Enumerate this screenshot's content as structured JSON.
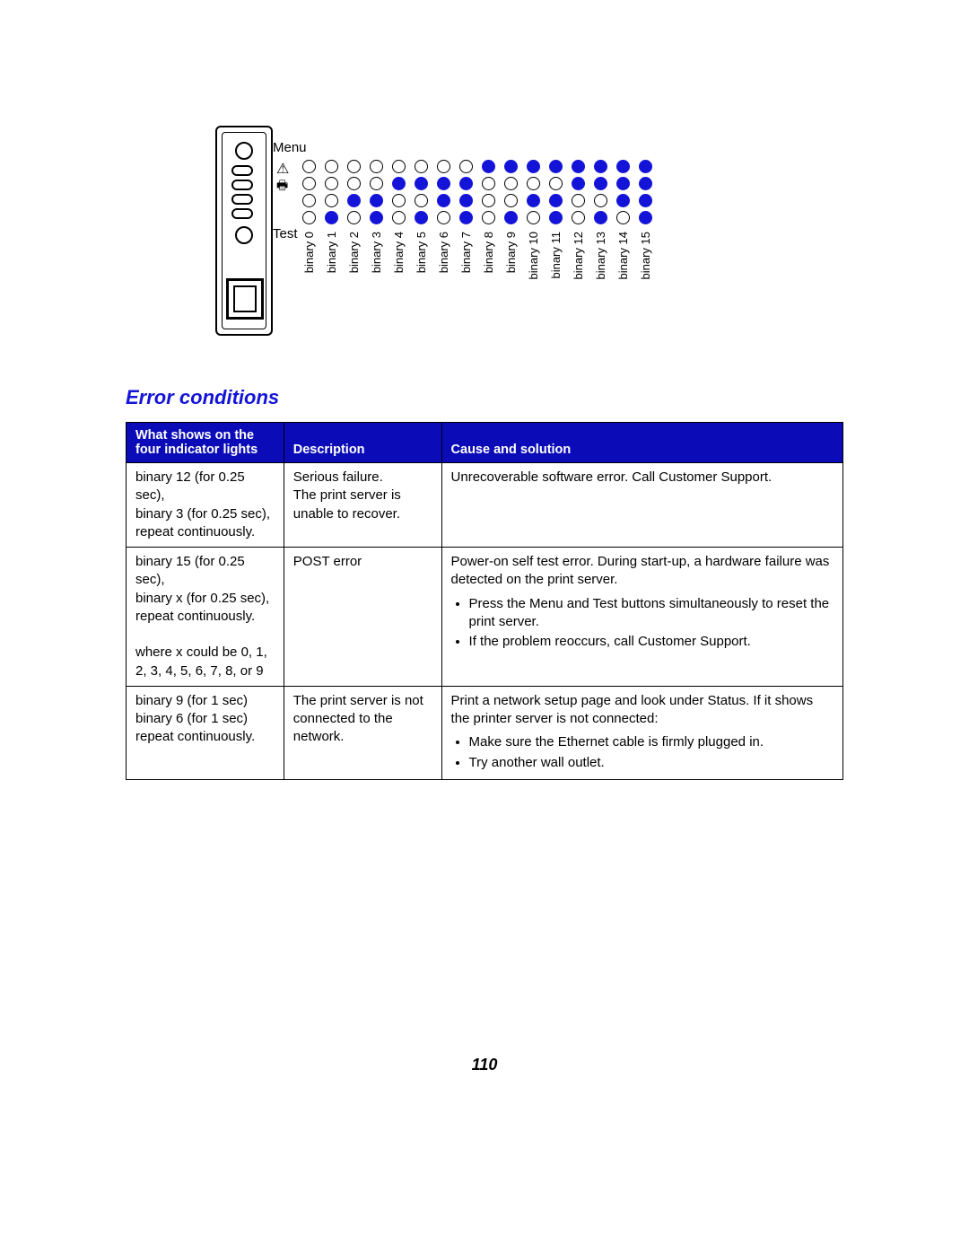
{
  "colors": {
    "led_on": "#1414d8",
    "led_off_border": "#000000",
    "table_header_bg": "#0b0bb8",
    "table_header_text": "#ffffff",
    "section_title": "#1414d8",
    "page_bg": "#ffffff"
  },
  "device": {
    "menu_label": "Menu",
    "test_label": "Test"
  },
  "binary_columns": {
    "label_prefix": "binary",
    "columns": [
      {
        "label": "binary 0",
        "bits": [
          0,
          0,
          0,
          0
        ]
      },
      {
        "label": "binary 1",
        "bits": [
          0,
          0,
          0,
          1
        ]
      },
      {
        "label": "binary 2",
        "bits": [
          0,
          0,
          1,
          0
        ]
      },
      {
        "label": "binary 3",
        "bits": [
          0,
          0,
          1,
          1
        ]
      },
      {
        "label": "binary 4",
        "bits": [
          0,
          1,
          0,
          0
        ]
      },
      {
        "label": "binary 5",
        "bits": [
          0,
          1,
          0,
          1
        ]
      },
      {
        "label": "binary 6",
        "bits": [
          0,
          1,
          1,
          0
        ]
      },
      {
        "label": "binary 7",
        "bits": [
          0,
          1,
          1,
          1
        ]
      },
      {
        "label": "binary 8",
        "bits": [
          1,
          0,
          0,
          0
        ]
      },
      {
        "label": "binary 9",
        "bits": [
          1,
          0,
          0,
          1
        ]
      },
      {
        "label": "binary 10",
        "bits": [
          1,
          0,
          1,
          0
        ]
      },
      {
        "label": "binary 11",
        "bits": [
          1,
          0,
          1,
          1
        ]
      },
      {
        "label": "binary 12",
        "bits": [
          1,
          1,
          0,
          0
        ]
      },
      {
        "label": "binary 13",
        "bits": [
          1,
          1,
          0,
          1
        ]
      },
      {
        "label": "binary 14",
        "bits": [
          1,
          1,
          1,
          0
        ]
      },
      {
        "label": "binary 15",
        "bits": [
          1,
          1,
          1,
          1
        ]
      }
    ]
  },
  "section_title": "Error conditions",
  "table": {
    "col_widths": [
      "22%",
      "22%",
      "56%"
    ],
    "headers": [
      "What shows on the four indicator lights",
      "Description",
      "Cause and solution"
    ],
    "rows": [
      {
        "lights": "binary 12 (for 0.25 sec),\nbinary 3 (for 0.25 sec),\nrepeat continuously.",
        "description": "Serious failure.\nThe print server is unable to recover.",
        "solution_intro": "Unrecoverable software error. Call Customer Support.",
        "solution_bullets": []
      },
      {
        "lights": "binary 15 (for 0.25 sec),\nbinary x (for 0.25 sec),\nrepeat continuously.\n\nwhere x could be 0, 1, 2, 3, 4, 5, 6, 7, 8, or 9",
        "description": "POST error",
        "solution_intro": "Power-on self test error. During start-up, a hardware failure was detected on the print server.",
        "solution_bullets": [
          "Press the Menu and Test buttons simultaneously to reset the print server.",
          "If the problem reoccurs, call Customer Support."
        ]
      },
      {
        "lights": "binary 9 (for 1 sec)\nbinary 6 (for 1 sec)\nrepeat continuously.",
        "description": "The print server is not connected to the network.",
        "solution_intro": "Print a network setup page and look under Status. If it shows the printer server is not connected:",
        "solution_bullets": [
          "Make sure the Ethernet cable is firmly plugged in.",
          "Try another wall outlet."
        ]
      }
    ]
  },
  "page_number": "110"
}
